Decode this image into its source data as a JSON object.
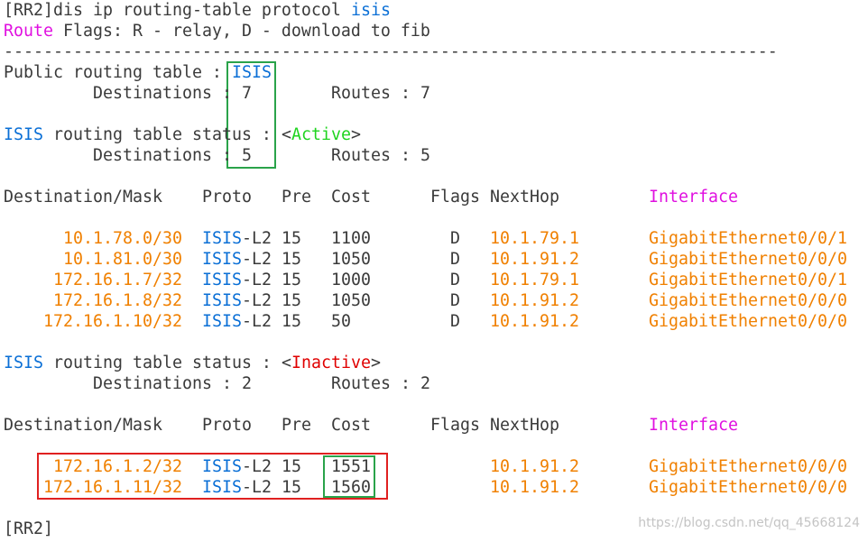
{
  "command": {
    "prefix": "[RR2]dis ip routing-table protocol",
    "protocol": "isis"
  },
  "legend": {
    "label": "Route",
    "text": "Flags: R - relay, D - download to fib"
  },
  "separator": "------------------------------------------------------------------------------",
  "public_table": {
    "label": "Public routing table :",
    "name": "ISIS",
    "destinations_label": "Destinations :",
    "destinations": "7",
    "routes_label": "Routes :",
    "routes": "7"
  },
  "active": {
    "protocol": "ISIS",
    "status_label": "routing table status :",
    "open": "<",
    "status": "Active",
    "close": ">",
    "destinations_label": "Destinations :",
    "destinations": "5",
    "routes_label": "Routes :",
    "routes": "5",
    "columns": [
      "Destination/Mask",
      "Proto",
      "Pre",
      "Cost",
      "Flags",
      "NextHop",
      "Interface"
    ],
    "rows": [
      {
        "destination": "10.1.78.0/30",
        "proto": "ISIS",
        "level": "-L2",
        "pre": "15",
        "cost": "1100",
        "flags": "D",
        "nexthop": "10.1.79.1",
        "interface": "GigabitEthernet0/0/1"
      },
      {
        "destination": "10.1.81.0/30",
        "proto": "ISIS",
        "level": "-L2",
        "pre": "15",
        "cost": "1050",
        "flags": "D",
        "nexthop": "10.1.91.2",
        "interface": "GigabitEthernet0/0/0"
      },
      {
        "destination": "172.16.1.7/32",
        "proto": "ISIS",
        "level": "-L2",
        "pre": "15",
        "cost": "1000",
        "flags": "D",
        "nexthop": "10.1.79.1",
        "interface": "GigabitEthernet0/0/1"
      },
      {
        "destination": "172.16.1.8/32",
        "proto": "ISIS",
        "level": "-L2",
        "pre": "15",
        "cost": "1050",
        "flags": "D",
        "nexthop": "10.1.91.2",
        "interface": "GigabitEthernet0/0/0"
      },
      {
        "destination": "172.16.1.10/32",
        "proto": "ISIS",
        "level": "-L2",
        "pre": "15",
        "cost": "50",
        "flags": "D",
        "nexthop": "10.1.91.2",
        "interface": "GigabitEthernet0/0/0"
      }
    ]
  },
  "inactive": {
    "protocol": "ISIS",
    "status_label": "routing table status :",
    "open": "<",
    "status": "Inactive",
    "close": ">",
    "destinations_label": "Destinations :",
    "destinations": "2",
    "routes_label": "Routes :",
    "routes": "2",
    "columns": [
      "Destination/Mask",
      "Proto",
      "Pre",
      "Cost",
      "Flags",
      "NextHop",
      "Interface"
    ],
    "rows": [
      {
        "destination": "172.16.1.2/32",
        "proto": "ISIS",
        "level": "-L2",
        "pre": "15",
        "cost": "1551",
        "nexthop": "10.1.91.2",
        "interface": "GigabitEthernet0/0/0"
      },
      {
        "destination": "172.16.1.11/32",
        "proto": "ISIS",
        "level": "-L2",
        "pre": "15",
        "cost": "1560",
        "nexthop": "10.1.91.2",
        "interface": "GigabitEthernet0/0/0"
      }
    ]
  },
  "prompt": "[RR2]",
  "watermark": "https://blog.csdn.net/qq_45668124"
}
